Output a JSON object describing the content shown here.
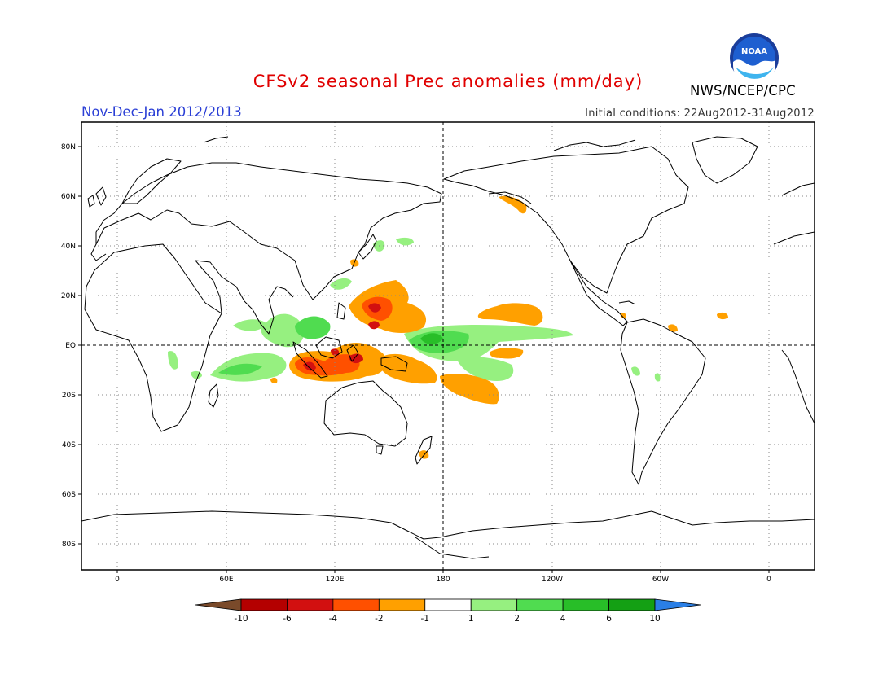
{
  "title": "CFSv2 seasonal Prec anomalies (mm/day)",
  "season": "Nov-Dec-Jan 2012/2013",
  "initial_conditions": "Initial conditions: 22Aug2012-31Aug2012",
  "agency": "NWS/NCEP/CPC",
  "logo_text": "NOAA",
  "map": {
    "lon_ticks": [
      "0",
      "60E",
      "120E",
      "180",
      "120W",
      "60W",
      "0"
    ],
    "lat_ticks": [
      "80N",
      "60N",
      "40N",
      "20N",
      "EQ",
      "20S",
      "40S",
      "60S",
      "80S"
    ]
  },
  "colorbar": {
    "labels": [
      "-10",
      "-6",
      "-4",
      "-2",
      "-1",
      "1",
      "2",
      "4",
      "6",
      "10"
    ],
    "colors": [
      "#7a4a2a",
      "#b40000",
      "#d21010",
      "#ff5000",
      "#ffa000",
      "#ffffff",
      "#96f080",
      "#50dc50",
      "#28be28",
      "#14a014",
      "#2a7fe6"
    ]
  },
  "anomaly_colors": {
    "dry_1": "#ffa000",
    "dry_2": "#ff5000",
    "dry_3": "#d21010",
    "wet_1": "#96f080",
    "wet_2": "#50dc50",
    "wet_3": "#28be28"
  }
}
